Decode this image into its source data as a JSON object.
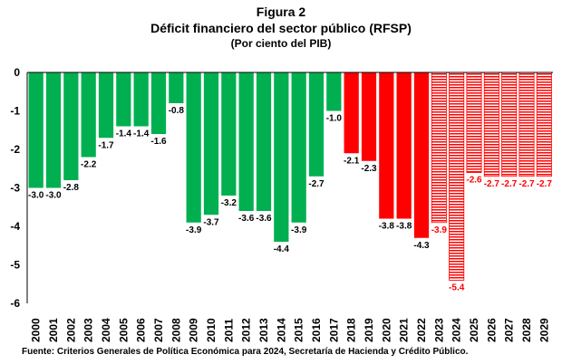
{
  "title": "Figura 2",
  "subtitle": "Déficit financiero del sector público (RFSP)",
  "unit_note": "(Por ciento del PIB)",
  "source": "Fuente: Criterios Generales de Política Económica para 2024, Secretaría de Hacienda y Crédito Público.",
  "colors": {
    "historic": "#00B050",
    "recent": "#FF0000",
    "projection": "#FF0000",
    "projection_label": "#FF0000",
    "label": "#000000"
  },
  "chart_data": {
    "type": "bar",
    "title": "Figura 2",
    "subtitle": "Déficit financiero del sector público (RFSP)",
    "ylabel": "",
    "xlabel": "",
    "ylim": [
      -6,
      0
    ],
    "yticks": [
      "0",
      "-1",
      "-2",
      "-3",
      "-4",
      "-5",
      "-6"
    ],
    "grid": false,
    "categories": [
      "2000",
      "2001",
      "2002",
      "2003",
      "2004",
      "2005",
      "2006",
      "2007",
      "2008",
      "2009",
      "2010",
      "2011",
      "2012",
      "2013",
      "2014",
      "2015",
      "2016",
      "2017",
      "2018",
      "2019",
      "2020",
      "2021",
      "2022",
      "2023",
      "2024",
      "2025",
      "2026",
      "2027",
      "2028",
      "2029"
    ],
    "values": [
      -3.0,
      -3.0,
      -2.8,
      -2.2,
      -1.7,
      -1.4,
      -1.4,
      -1.6,
      -0.8,
      -3.9,
      -3.7,
      -3.2,
      -3.6,
      -3.6,
      -4.4,
      -3.9,
      -2.7,
      -1.0,
      -2.1,
      -2.3,
      -3.8,
      -3.8,
      -4.3,
      -3.9,
      -5.4,
      -2.6,
      -2.7,
      -2.7,
      -2.7,
      -2.7
    ],
    "labels": [
      "-3.0",
      "-3.0",
      "-2.8",
      "-2.2",
      "-1.7",
      "-1.4",
      "-1.4",
      "-1.6",
      "-0.8",
      "-3.9",
      "-3.7",
      "-3.2",
      "-3.6",
      "-3.6",
      "-4.4",
      "-3.9",
      "-2.7",
      "-1.0",
      "-2.1",
      "-2.3",
      "-3.8",
      "-3.8",
      "-4.3",
      "-3.9",
      "-5.4",
      "-2.6",
      "-2.7",
      "-2.7",
      "-2.7",
      "-2.7"
    ],
    "groups": [
      "historic",
      "historic",
      "historic",
      "historic",
      "historic",
      "historic",
      "historic",
      "historic",
      "historic",
      "historic",
      "historic",
      "historic",
      "historic",
      "historic",
      "historic",
      "historic",
      "historic",
      "historic",
      "recent",
      "recent",
      "recent",
      "recent",
      "recent",
      "projection",
      "projection",
      "projection",
      "projection",
      "projection",
      "projection",
      "projection"
    ]
  }
}
